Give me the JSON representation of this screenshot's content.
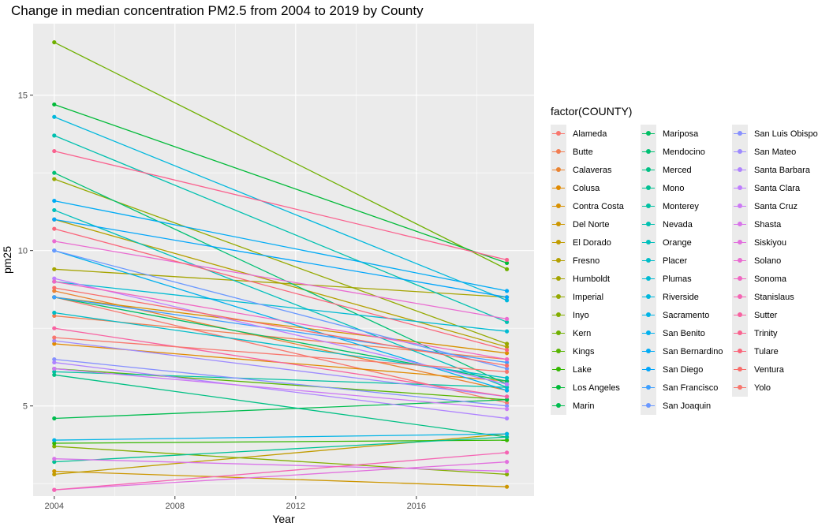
{
  "chart_data": {
    "type": "line",
    "title": "Change in median concentration PM2.5 from 2004 to 2019 by County",
    "xlabel": "Year",
    "ylabel": "pm25",
    "xlim": [
      2003.3,
      2019.9
    ],
    "ylim": [
      2.1,
      17.3
    ],
    "x_ticks": [
      2004,
      2008,
      2012,
      2016
    ],
    "y_ticks": [
      5,
      10,
      15
    ],
    "x": [
      2004,
      2019
    ],
    "grid": true,
    "legend": {
      "title": "factor(COUNTY)",
      "placement": "right",
      "columns": 3
    },
    "series": [
      {
        "name": "Alameda",
        "color": "#F8766D",
        "values": [
          8.5,
          5.1
        ]
      },
      {
        "name": "Butte",
        "color": "#F27D52",
        "values": [
          7.9,
          6.5
        ]
      },
      {
        "name": "Calaveras",
        "color": "#EA8331",
        "values": [
          8.7,
          5.5
        ]
      },
      {
        "name": "Colusa",
        "color": "#E18A00",
        "values": [
          7.0,
          5.8
        ]
      },
      {
        "name": "Contra Costa",
        "color": "#D89000",
        "values": [
          8.5,
          6.7
        ]
      },
      {
        "name": "Del Norte",
        "color": "#CD9600",
        "values": [
          2.9,
          2.4
        ]
      },
      {
        "name": "El Dorado",
        "color": "#C19C00",
        "values": [
          2.8,
          4.1
        ]
      },
      {
        "name": "Fresno",
        "color": "#B4A000",
        "values": [
          11.0,
          6.9
        ]
      },
      {
        "name": "Humboldt",
        "color": "#A5A400",
        "values": [
          9.4,
          8.5
        ]
      },
      {
        "name": "Imperial",
        "color": "#95A900",
        "values": [
          12.3,
          7.0
        ]
      },
      {
        "name": "Inyo",
        "color": "#83AD00",
        "values": [
          3.7,
          2.8
        ]
      },
      {
        "name": "Kern",
        "color": "#6FB000",
        "values": [
          16.7,
          9.4
        ]
      },
      {
        "name": "Kings",
        "color": "#57B400",
        "values": [
          6.2,
          5.2
        ]
      },
      {
        "name": "Lake",
        "color": "#34B700",
        "values": [
          3.8,
          3.9
        ]
      },
      {
        "name": "Los Angeles",
        "color": "#00BA38",
        "values": [
          14.7,
          9.6
        ]
      },
      {
        "name": "Marin",
        "color": "#00BC4F",
        "values": [
          4.6,
          5.2
        ]
      },
      {
        "name": "Mariposa",
        "color": "#00BE63",
        "values": [
          8.5,
          5.8
        ]
      },
      {
        "name": "Mendocino",
        "color": "#00C074",
        "values": [
          12.5,
          5.7
        ]
      },
      {
        "name": "Merced",
        "color": "#00C084",
        "values": [
          6.0,
          4.0
        ]
      },
      {
        "name": "Mono",
        "color": "#00C193",
        "values": [
          3.2,
          4.0
        ]
      },
      {
        "name": "Monterey",
        "color": "#00C1A2",
        "values": [
          6.1,
          5.6
        ]
      },
      {
        "name": "Nevada",
        "color": "#00C0AF",
        "values": [
          13.7,
          7.7
        ]
      },
      {
        "name": "Orange",
        "color": "#00BFBC",
        "values": [
          11.3,
          5.6
        ]
      },
      {
        "name": "Placer",
        "color": "#00BDC8",
        "values": [
          8.0,
          5.9
        ]
      },
      {
        "name": "Plumas",
        "color": "#00BBD3",
        "values": [
          9.0,
          7.4
        ]
      },
      {
        "name": "Riverside",
        "color": "#00B8DD",
        "values": [
          14.3,
          8.4
        ]
      },
      {
        "name": "Sacramento",
        "color": "#00B4E6",
        "values": [
          3.9,
          4.1
        ]
      },
      {
        "name": "San Benito",
        "color": "#00B0EE",
        "values": [
          10.0,
          5.5
        ]
      },
      {
        "name": "San Bernardino",
        "color": "#00ABF5",
        "values": [
          11.6,
          8.7
        ]
      },
      {
        "name": "San Diego",
        "color": "#00A5FB",
        "values": [
          11.0,
          8.5
        ]
      },
      {
        "name": "San Francisco",
        "color": "#3D9FFF",
        "values": [
          8.5,
          6.4
        ]
      },
      {
        "name": "San Joaquin",
        "color": "#6A98FF",
        "values": [
          10.0,
          6.2
        ]
      },
      {
        "name": "San Luis Obispo",
        "color": "#8790FF",
        "values": [
          6.5,
          5.0
        ]
      },
      {
        "name": "San Mateo",
        "color": "#9D8AFF",
        "values": [
          7.1,
          5.3
        ]
      },
      {
        "name": "Santa Barbara",
        "color": "#AF83FF",
        "values": [
          6.4,
          4.6
        ]
      },
      {
        "name": "Santa Clara",
        "color": "#BF7EFF",
        "values": [
          9.1,
          5.7
        ]
      },
      {
        "name": "Santa Cruz",
        "color": "#CC79F5",
        "values": [
          6.2,
          4.9
        ]
      },
      {
        "name": "Shasta",
        "color": "#D875EA",
        "values": [
          3.3,
          2.9
        ]
      },
      {
        "name": "Siskiyou",
        "color": "#E270DE",
        "values": [
          2.3,
          3.2
        ]
      },
      {
        "name": "Solano",
        "color": "#EA6BD1",
        "values": [
          10.3,
          7.8
        ]
      },
      {
        "name": "Sonoma",
        "color": "#F166C2",
        "values": [
          9.0,
          6.5
        ]
      },
      {
        "name": "Stanislaus",
        "color": "#F564B3",
        "values": [
          2.3,
          3.5
        ]
      },
      {
        "name": "Sutter",
        "color": "#F862A1",
        "values": [
          7.5,
          5.3
        ]
      },
      {
        "name": "Trinity",
        "color": "#FA628F",
        "values": [
          13.2,
          9.7
        ]
      },
      {
        "name": "Tulare",
        "color": "#FA657A",
        "values": [
          10.7,
          6.8
        ]
      },
      {
        "name": "Ventura",
        "color": "#F96D6A",
        "values": [
          8.8,
          6.3
        ]
      },
      {
        "name": "Yolo",
        "color": "#F8766D",
        "values": [
          7.2,
          6.1
        ]
      }
    ]
  }
}
